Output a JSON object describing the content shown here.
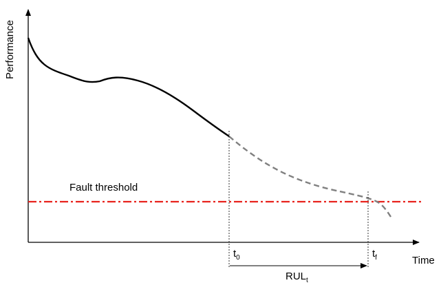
{
  "diagram": {
    "y_axis_label": "Performance",
    "x_axis_label": "Time",
    "threshold_label": "Fault threshold",
    "t0": {
      "main": "t",
      "sub": "0"
    },
    "tf": {
      "main": "t",
      "sub": "f"
    },
    "rul": {
      "main": "RUL",
      "sub": "t"
    },
    "colors": {
      "axis": "#000000",
      "history_curve": "#000000",
      "prediction_curve": "#808080",
      "threshold": "#e8221c"
    }
  }
}
